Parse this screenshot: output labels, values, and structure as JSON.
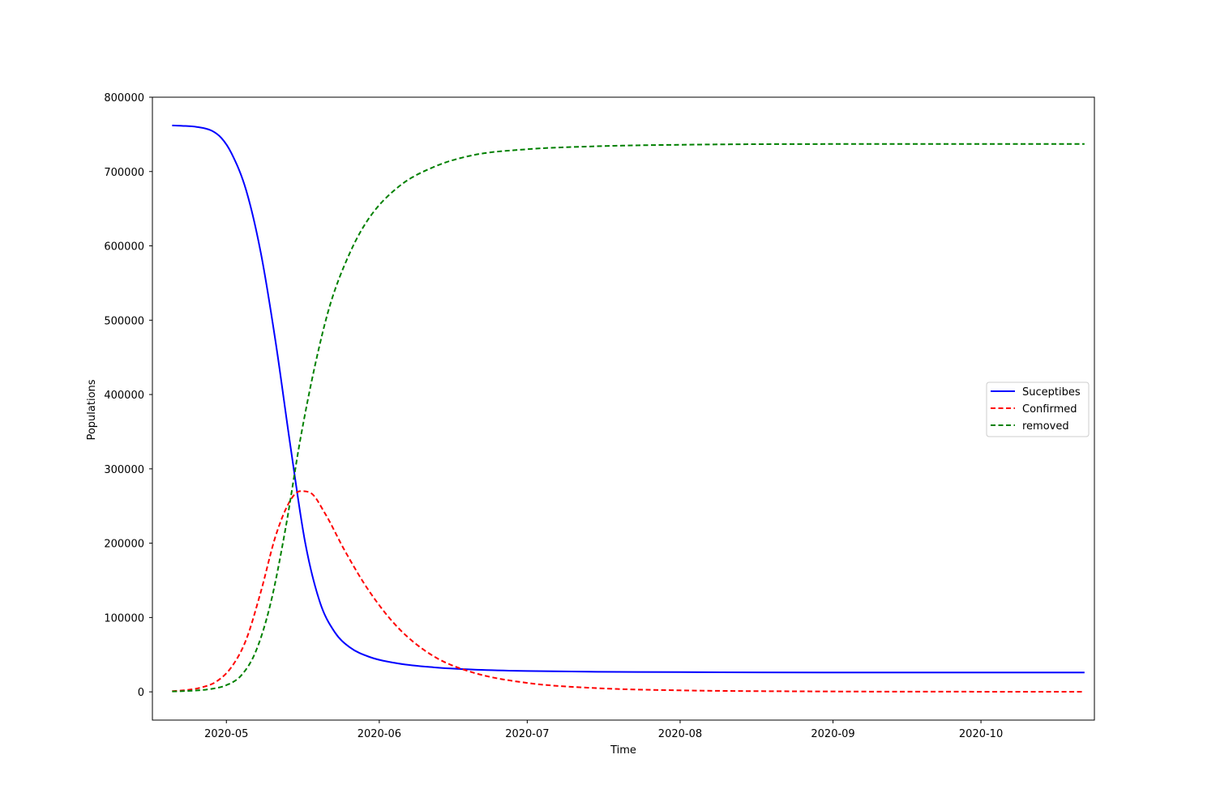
{
  "chart_data": {
    "type": "line",
    "title": "",
    "xlabel": "Time",
    "ylabel": "Populations",
    "x_ticks": [
      "2020-05",
      "2020-06",
      "2020-07",
      "2020-08",
      "2020-09",
      "2020-10"
    ],
    "xlim": [
      "2020-04-16",
      "2020-10-24"
    ],
    "ylim": [
      -38000,
      800000
    ],
    "y_ticks": [
      0,
      100000,
      200000,
      300000,
      400000,
      500000,
      600000,
      700000,
      800000
    ],
    "grid": false,
    "legend_position": "center-right",
    "series": [
      {
        "name": "Suceptibes",
        "color": "#0000ff",
        "linestyle": "solid",
        "points": [
          [
            "2020-04-20",
            762000
          ],
          [
            "2020-04-22",
            761500
          ],
          [
            "2020-04-25",
            760000
          ],
          [
            "2020-04-28",
            755000
          ],
          [
            "2020-04-30",
            745000
          ],
          [
            "2020-05-02",
            725000
          ],
          [
            "2020-05-05",
            675000
          ],
          [
            "2020-05-08",
            590000
          ],
          [
            "2020-05-11",
            470000
          ],
          [
            "2020-05-14",
            330000
          ],
          [
            "2020-05-17",
            200000
          ],
          [
            "2020-05-20",
            120000
          ],
          [
            "2020-05-23",
            80000
          ],
          [
            "2020-05-26",
            60000
          ],
          [
            "2020-05-30",
            47000
          ],
          [
            "2020-06-05",
            38000
          ],
          [
            "2020-06-12",
            33000
          ],
          [
            "2020-06-20",
            30000
          ],
          [
            "2020-07-01",
            28000
          ],
          [
            "2020-07-15",
            27000
          ],
          [
            "2020-08-01",
            26500
          ],
          [
            "2020-09-01",
            26000
          ],
          [
            "2020-10-01",
            26000
          ],
          [
            "2020-10-22",
            26000
          ]
        ]
      },
      {
        "name": "Confirmed",
        "color": "#ff0000",
        "linestyle": "dashed",
        "points": [
          [
            "2020-04-20",
            1000
          ],
          [
            "2020-04-23",
            2500
          ],
          [
            "2020-04-26",
            6000
          ],
          [
            "2020-04-29",
            14000
          ],
          [
            "2020-05-02",
            33000
          ],
          [
            "2020-05-05",
            70000
          ],
          [
            "2020-05-08",
            135000
          ],
          [
            "2020-05-11",
            210000
          ],
          [
            "2020-05-14",
            258000
          ],
          [
            "2020-05-16",
            270000
          ],
          [
            "2020-05-18",
            268000
          ],
          [
            "2020-05-21",
            240000
          ],
          [
            "2020-05-25",
            190000
          ],
          [
            "2020-05-30",
            135000
          ],
          [
            "2020-06-05",
            85000
          ],
          [
            "2020-06-12",
            48000
          ],
          [
            "2020-06-20",
            26000
          ],
          [
            "2020-07-01",
            12000
          ],
          [
            "2020-07-15",
            5000
          ],
          [
            "2020-08-01",
            2000
          ],
          [
            "2020-09-01",
            500
          ],
          [
            "2020-10-01",
            200
          ],
          [
            "2020-10-22",
            100
          ]
        ]
      },
      {
        "name": "removed",
        "color": "#008000",
        "linestyle": "dashed",
        "points": [
          [
            "2020-04-20",
            500
          ],
          [
            "2020-04-24",
            1500
          ],
          [
            "2020-04-28",
            4000
          ],
          [
            "2020-05-01",
            9000
          ],
          [
            "2020-05-04",
            22000
          ],
          [
            "2020-05-07",
            55000
          ],
          [
            "2020-05-10",
            120000
          ],
          [
            "2020-05-13",
            220000
          ],
          [
            "2020-05-16",
            340000
          ],
          [
            "2020-05-19",
            440000
          ],
          [
            "2020-05-22",
            520000
          ],
          [
            "2020-05-26",
            590000
          ],
          [
            "2020-05-30",
            638000
          ],
          [
            "2020-06-05",
            680000
          ],
          [
            "2020-06-12",
            706000
          ],
          [
            "2020-06-20",
            722000
          ],
          [
            "2020-07-01",
            730000
          ],
          [
            "2020-07-15",
            734000
          ],
          [
            "2020-08-01",
            736000
          ],
          [
            "2020-09-01",
            737000
          ],
          [
            "2020-10-01",
            737000
          ],
          [
            "2020-10-22",
            737000
          ]
        ]
      }
    ]
  }
}
